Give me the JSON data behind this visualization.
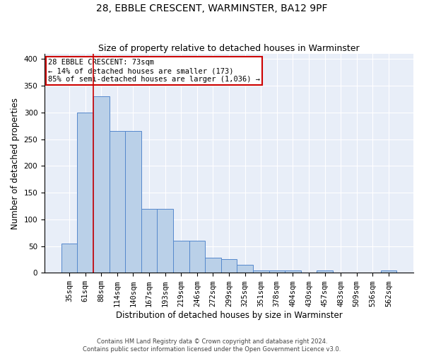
{
  "title": "28, EBBLE CRESCENT, WARMINSTER, BA12 9PF",
  "subtitle": "Size of property relative to detached houses in Warminster",
  "xlabel": "Distribution of detached houses by size in Warminster",
  "ylabel": "Number of detached properties",
  "footer_line1": "Contains HM Land Registry data © Crown copyright and database right 2024.",
  "footer_line2": "Contains public sector information licensed under the Open Government Licence v3.0.",
  "bar_categories": [
    "35sqm",
    "61sqm",
    "88sqm",
    "114sqm",
    "140sqm",
    "167sqm",
    "193sqm",
    "219sqm",
    "246sqm",
    "272sqm",
    "299sqm",
    "325sqm",
    "351sqm",
    "378sqm",
    "404sqm",
    "430sqm",
    "457sqm",
    "483sqm",
    "509sqm",
    "536sqm",
    "562sqm"
  ],
  "bar_values": [
    55,
    300,
    330,
    265,
    265,
    120,
    120,
    60,
    60,
    28,
    25,
    15,
    5,
    5,
    5,
    0,
    5,
    0,
    0,
    0,
    5
  ],
  "bar_color": "#bad0e8",
  "bar_edge_color": "#5588cc",
  "background_color": "#e8eef8",
  "grid_color": "#d0d8e8",
  "annotation_text": "28 EBBLE CRESCENT: 73sqm\n← 14% of detached houses are smaller (173)\n85% of semi-detached houses are larger (1,036) →",
  "annotation_box_color": "#ffffff",
  "annotation_box_edge": "#cc0000",
  "vline_color": "#cc0000",
  "vline_pos": 1.5,
  "ylim": [
    0,
    410
  ],
  "yticks": [
    0,
    50,
    100,
    150,
    200,
    250,
    300,
    350,
    400
  ],
  "title_fontsize": 10,
  "subtitle_fontsize": 9,
  "xlabel_fontsize": 8.5,
  "ylabel_fontsize": 8.5,
  "tick_fontsize": 7.5,
  "annot_fontsize": 7.5
}
